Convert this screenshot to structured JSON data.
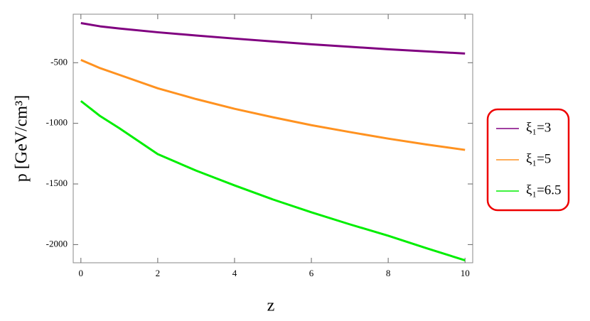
{
  "chart_data": {
    "type": "line",
    "x_label": "z",
    "y_label": "p [GeV/cm³]",
    "x": [
      0,
      0.5,
      1,
      2,
      3,
      4,
      5,
      6,
      7,
      8,
      9,
      10
    ],
    "series": [
      {
        "name": "ξ₁=3",
        "color": "#800080",
        "values": [
          -173,
          -200,
          -218,
          -249,
          -276,
          -301,
          -325,
          -348,
          -369,
          -389,
          -407,
          -424
        ]
      },
      {
        "name": "ξ₁=5",
        "color": "#ff9220",
        "values": [
          -477,
          -545,
          -600,
          -711,
          -800,
          -880,
          -950,
          -1015,
          -1072,
          -1126,
          -1175,
          -1219
        ]
      },
      {
        "name": "ξ₁=6.5",
        "color": "#00ee00",
        "values": [
          -816,
          -940,
          -1040,
          -1254,
          -1390,
          -1512,
          -1628,
          -1734,
          -1833,
          -1927,
          -2030,
          -2130
        ]
      }
    ],
    "xlim": [
      -0.2,
      10.2
    ],
    "ylim": [
      -2150,
      -100
    ],
    "xticks": [
      0,
      2,
      4,
      6,
      8,
      10
    ],
    "yticks": [
      -500,
      -1000,
      -1500,
      -2000
    ]
  }
}
